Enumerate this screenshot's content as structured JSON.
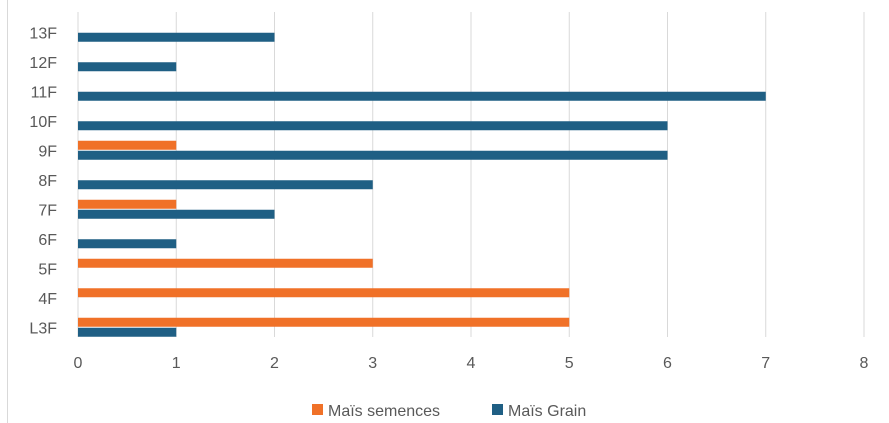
{
  "chart_data": {
    "type": "bar",
    "orientation": "horizontal",
    "categories": [
      "L3F",
      "4F",
      "5F",
      "6F",
      "7F",
      "8F",
      "9F",
      "10F",
      "11F",
      "12F",
      "13F"
    ],
    "series": [
      {
        "name": "Maïs semences",
        "color": "#F07128",
        "values": [
          5,
          5,
          3,
          0,
          1,
          0,
          1,
          0,
          0,
          0,
          0
        ]
      },
      {
        "name": "Maïs Grain",
        "color": "#1F5F84",
        "values": [
          1,
          0,
          0,
          1,
          2,
          3,
          6,
          6,
          7,
          1,
          2
        ]
      }
    ],
    "xlim": [
      0,
      8
    ],
    "x_ticks": [
      "0",
      "1",
      "2",
      "3",
      "4",
      "5",
      "6",
      "7",
      "8"
    ],
    "grid": "vertical",
    "legend": "bottom"
  }
}
